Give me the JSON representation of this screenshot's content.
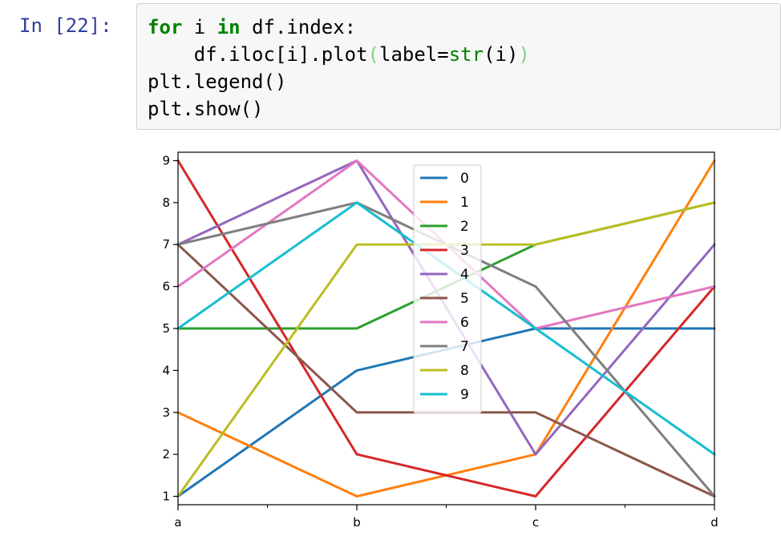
{
  "cell": {
    "prompt": "In [22]:",
    "code": {
      "line1": {
        "kw_for": "for",
        "var": " i ",
        "kw_in": "in",
        "rest": " df.index:"
      },
      "line2": {
        "indent": "    df.iloc[i].plot",
        "open": "(",
        "arg": "label=",
        "fn": "str",
        "call": "(i)",
        "close": ")"
      },
      "line3": "plt.legend()",
      "line4": "plt.show()"
    }
  },
  "chart_data": {
    "type": "line",
    "categories": [
      "a",
      "b",
      "c",
      "d"
    ],
    "ylim": [
      0.8,
      9.2
    ],
    "yticks": [
      1,
      2,
      3,
      4,
      5,
      6,
      7,
      8,
      9
    ],
    "grid": false,
    "legend_position": "top-center",
    "series": [
      {
        "name": "0",
        "color": "#1f77b4",
        "values": [
          1,
          4,
          5,
          5
        ]
      },
      {
        "name": "1",
        "color": "#ff7f0e",
        "values": [
          3,
          1,
          2,
          9
        ]
      },
      {
        "name": "2",
        "color": "#2ca02c",
        "values": [
          5,
          5,
          7,
          8
        ]
      },
      {
        "name": "3",
        "color": "#d62728",
        "values": [
          9,
          2,
          1,
          6
        ]
      },
      {
        "name": "4",
        "color": "#9467bd",
        "values": [
          7,
          9,
          2,
          7
        ]
      },
      {
        "name": "5",
        "color": "#8c564b",
        "values": [
          7,
          3,
          3,
          1
        ]
      },
      {
        "name": "6",
        "color": "#e377c2",
        "values": [
          6,
          9,
          5,
          6
        ]
      },
      {
        "name": "7",
        "color": "#7f7f7f",
        "values": [
          7,
          8,
          6,
          1
        ]
      },
      {
        "name": "8",
        "color": "#bcbd22",
        "values": [
          1,
          7,
          7,
          8
        ]
      },
      {
        "name": "9",
        "color": "#17becf",
        "values": [
          5,
          8,
          5,
          2
        ]
      }
    ]
  }
}
